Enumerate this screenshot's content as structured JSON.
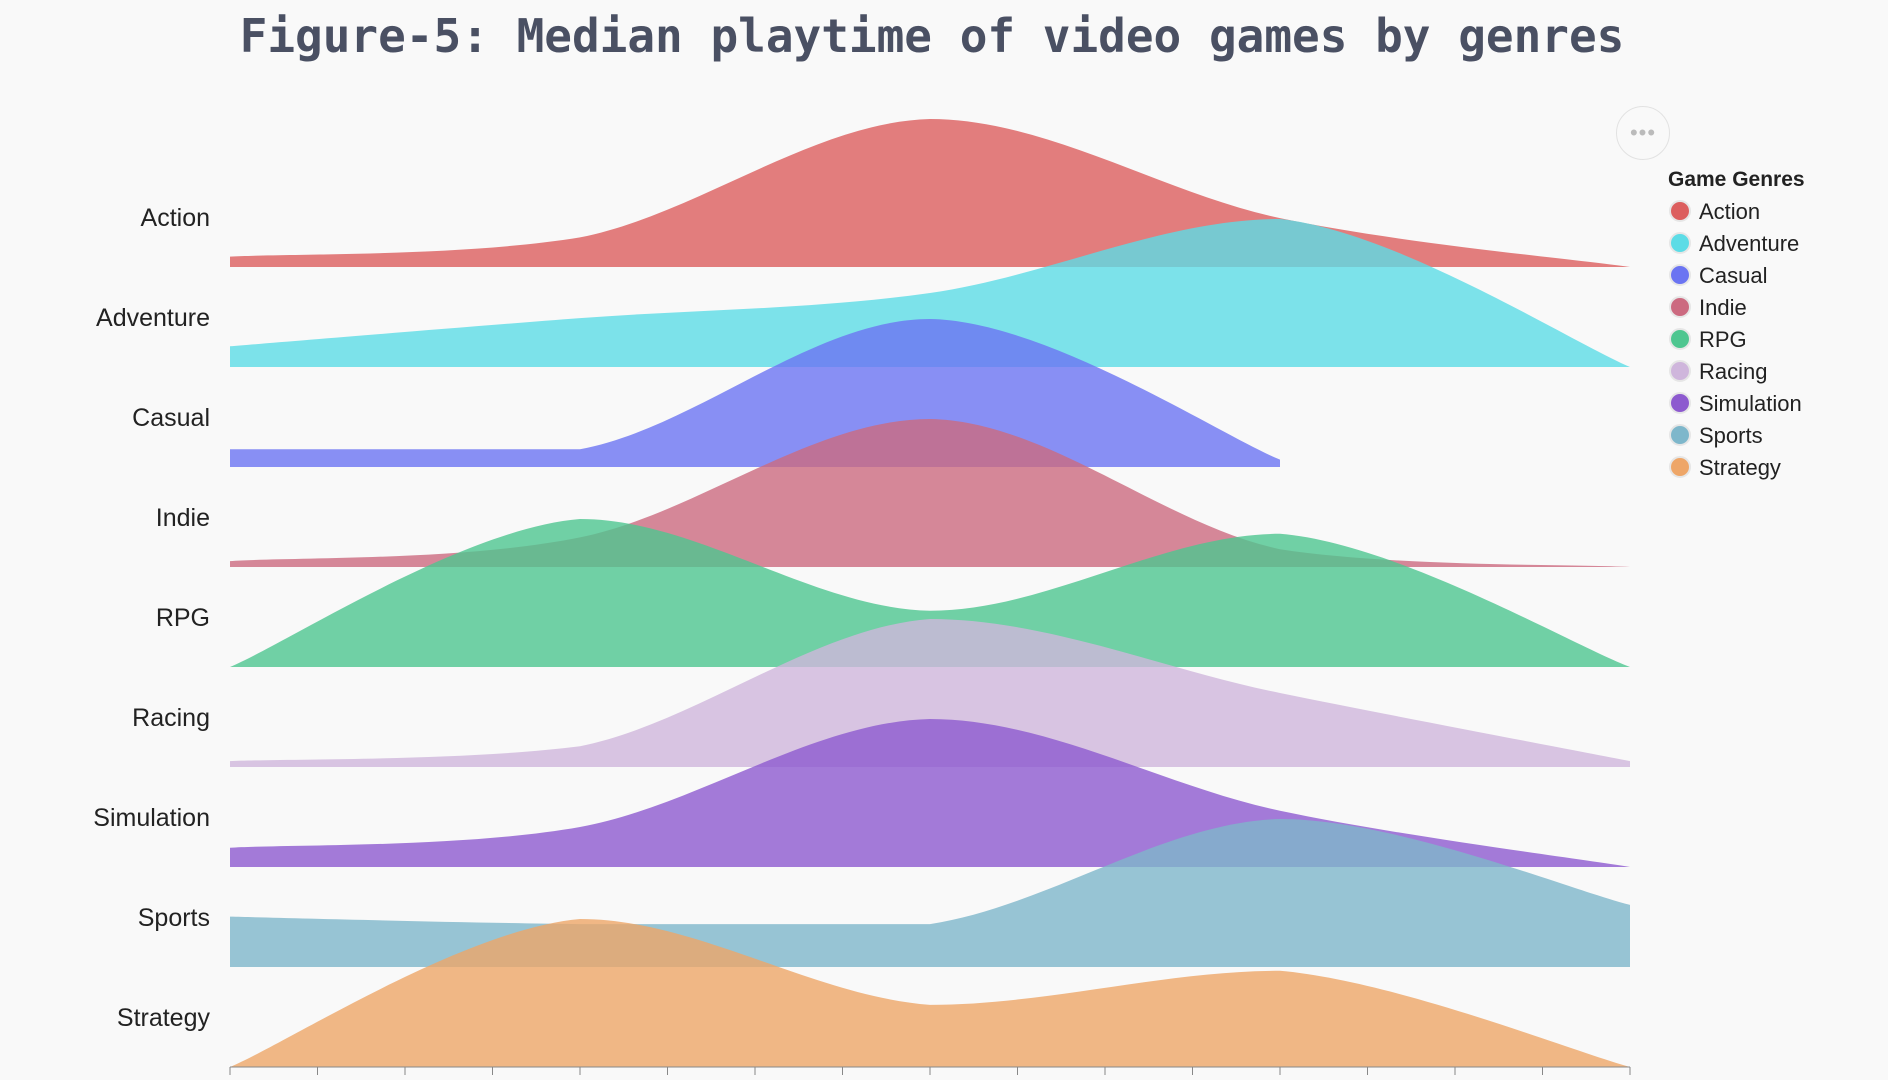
{
  "chart_data": {
    "type": "area",
    "title": "Figure-5: Median playtime of video games by genres",
    "legend_title": "Game Genres",
    "legend_position": "top-right",
    "x": [
      0,
      1,
      2,
      3,
      4
    ],
    "series": [
      {
        "name": "Action",
        "color": "#dc5e5e",
        "values": [
          0.07,
          0.2,
          1.0,
          0.33,
          0.0
        ]
      },
      {
        "name": "Adventure",
        "color": "#5cdce6",
        "values": [
          0.14,
          0.33,
          0.5,
          1.0,
          0.0
        ]
      },
      {
        "name": "Casual",
        "color": "#6b74f2",
        "values": [
          0.12,
          0.12,
          1.0,
          0.05,
          null
        ]
      },
      {
        "name": "Indie",
        "color": "#cc6a80",
        "values": [
          0.04,
          0.2,
          1.0,
          0.12,
          0.0
        ]
      },
      {
        "name": "RPG",
        "color": "#4ec690",
        "values": [
          0.0,
          1.0,
          0.38,
          0.9,
          0.0
        ]
      },
      {
        "name": "Racing",
        "color": "#cfb6dc",
        "values": [
          0.04,
          0.14,
          1.0,
          0.5,
          0.04
        ]
      },
      {
        "name": "Simulation",
        "color": "#8d5acf",
        "values": [
          0.13,
          0.27,
          1.0,
          0.38,
          0.0
        ]
      },
      {
        "name": "Sports",
        "color": "#7eb7cb",
        "values": [
          0.34,
          0.29,
          0.29,
          1.0,
          0.42
        ]
      },
      {
        "name": "Strategy",
        "color": "#eea668",
        "values": [
          0.0,
          1.0,
          0.42,
          0.65,
          0.0
        ]
      }
    ],
    "ylabel": "",
    "xlabel": "",
    "grid": false
  },
  "toolbar": {
    "more_symbol": "•••"
  }
}
